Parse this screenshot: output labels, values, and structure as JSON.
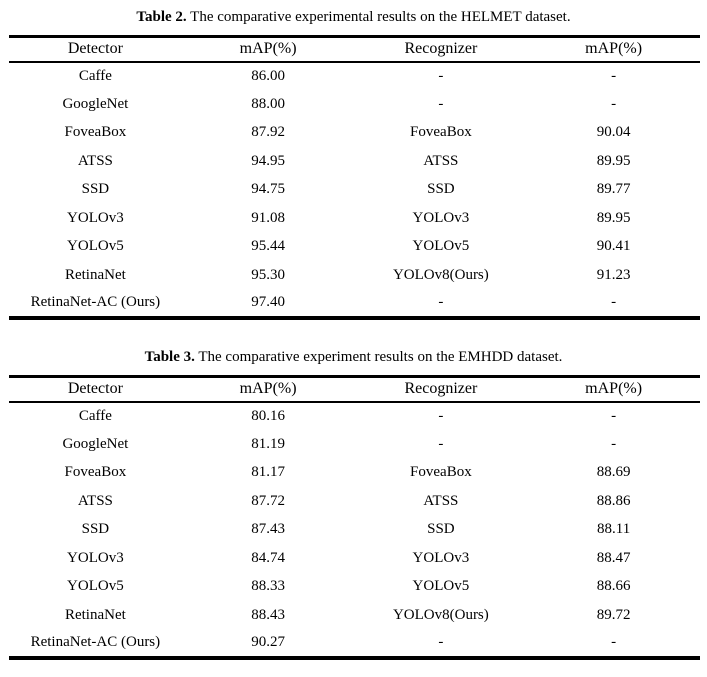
{
  "colors": {
    "text": "#000000",
    "background": "#ffffff",
    "rule": "#000000"
  },
  "tables": [
    {
      "caption_label": "Table 2.",
      "caption_text": "The comparative experimental results on the HELMET dataset.",
      "headers": [
        "Detector",
        "mAP(%)",
        "Recognizer",
        "mAP(%)"
      ],
      "rows": [
        [
          "Caffe",
          "86.00",
          "-",
          "-"
        ],
        [
          "GoogleNet",
          "88.00",
          "-",
          "-"
        ],
        [
          "FoveaBox",
          "87.92",
          "FoveaBox",
          "90.04"
        ],
        [
          "ATSS",
          "94.95",
          "ATSS",
          "89.95"
        ],
        [
          "SSD",
          "94.75",
          "SSD",
          "89.77"
        ],
        [
          "YOLOv3",
          "91.08",
          "YOLOv3",
          "89.95"
        ],
        [
          "YOLOv5",
          "95.44",
          "YOLOv5",
          "90.41"
        ],
        [
          "RetinaNet",
          "95.30",
          "YOLOv8(Ours)",
          "91.23"
        ],
        [
          "RetinaNet-AC (Ours)",
          "97.40",
          "-",
          "-"
        ]
      ]
    },
    {
      "caption_label": "Table 3.",
      "caption_text": "The comparative experiment results on the EMHDD dataset.",
      "headers": [
        "Detector",
        "mAP(%)",
        "Recognizer",
        "mAP(%)"
      ],
      "rows": [
        [
          "Caffe",
          "80.16",
          "-",
          "-"
        ],
        [
          "GoogleNet",
          "81.19",
          "-",
          "-"
        ],
        [
          "FoveaBox",
          "81.17",
          "FoveaBox",
          "88.69"
        ],
        [
          "ATSS",
          "87.72",
          "ATSS",
          "88.86"
        ],
        [
          "SSD",
          "87.43",
          "SSD",
          "88.11"
        ],
        [
          "YOLOv3",
          "84.74",
          "YOLOv3",
          "88.47"
        ],
        [
          "YOLOv5",
          "88.33",
          "YOLOv5",
          "88.66"
        ],
        [
          "RetinaNet",
          "88.43",
          "YOLOv8(Ours)",
          "89.72"
        ],
        [
          "RetinaNet-AC (Ours)",
          "90.27",
          "-",
          "-"
        ]
      ]
    }
  ]
}
